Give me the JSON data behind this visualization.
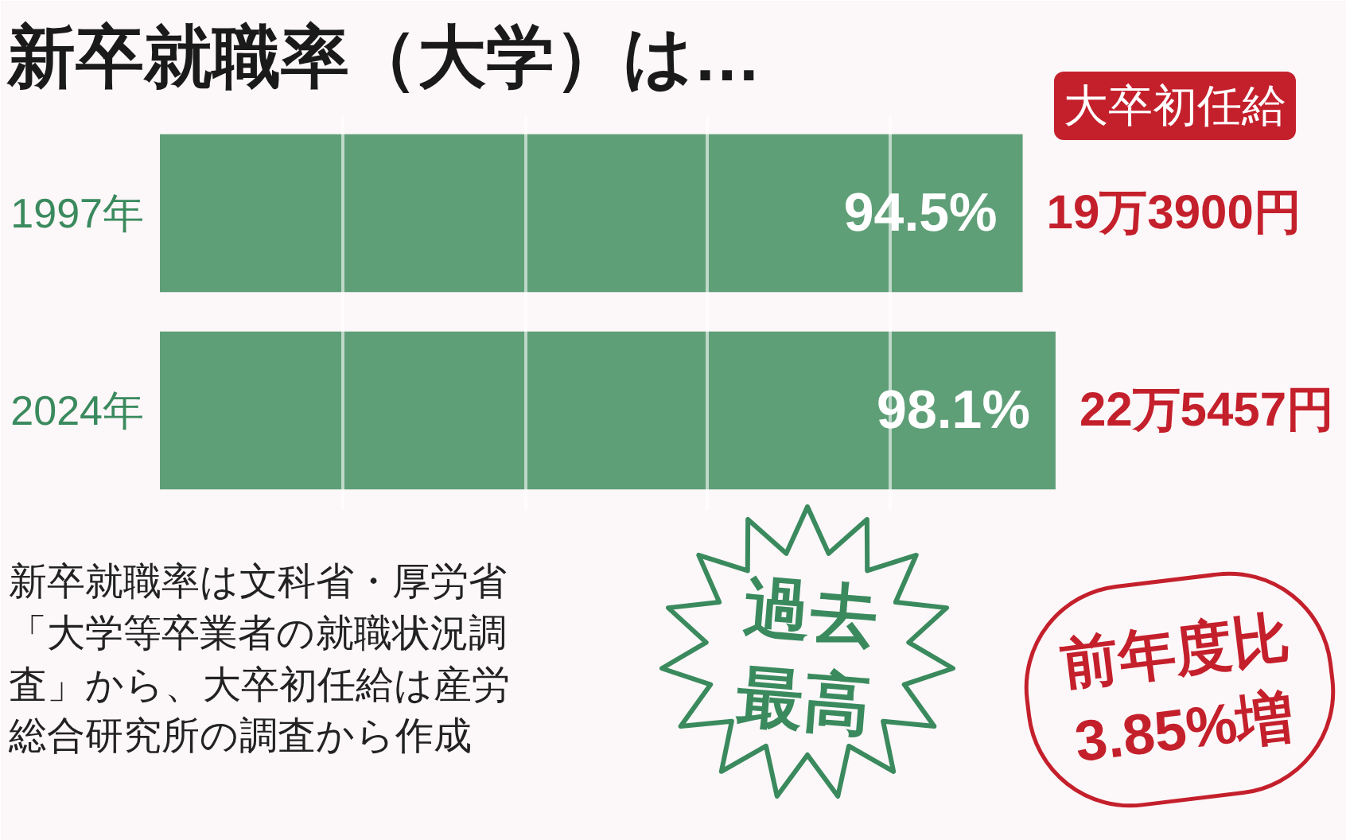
{
  "chart_data": {
    "type": "bar",
    "orientation": "horizontal",
    "title": "新卒就職率（大学）は…",
    "categories": [
      "1997年",
      "2024年"
    ],
    "values": [
      94.5,
      98.1
    ],
    "color": "#5f9f78",
    "value_labels": [
      "94.5%",
      "98.1%"
    ],
    "xlim": [
      0,
      130
    ],
    "xticks": [
      {
        "value": 20,
        "label": null
      },
      {
        "value": 40,
        "label": null
      },
      {
        "value": 60,
        "label": null
      },
      {
        "value": 80,
        "label": null
      }
    ],
    "grid": "x",
    "tick_labels": "y",
    "annotations": [
      "大卒初任給",
      "19万3900円",
      "22万5457円",
      "過去最高",
      "前年度比3.85%増",
      "新卒就職率は文科省・厚労省「大学等卒業者の就職状況調査」から、大卒初任給は産労総合研究所の調査から作成"
    ]
  }
}
